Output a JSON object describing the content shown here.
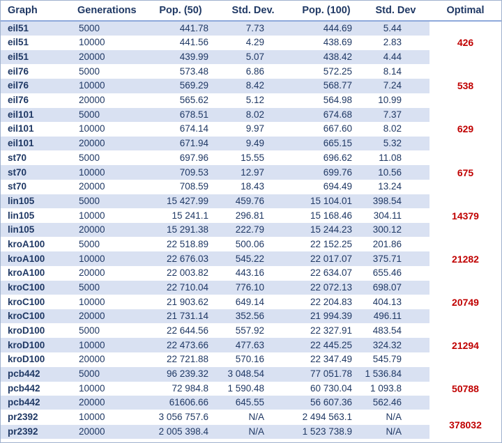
{
  "headers": [
    "Graph",
    "Generations",
    "Pop. (50)",
    "Std. Dev.",
    "Pop. (100)",
    "Std. Dev",
    "Optimal"
  ],
  "groups": [
    {
      "optimal": "426",
      "rows": [
        [
          "eil51",
          "5000",
          "441.78",
          "7.73",
          "444.69",
          "5.44"
        ],
        [
          "eil51",
          "10000",
          "441.56",
          "4.29",
          "438.69",
          "2.83"
        ],
        [
          "eil51",
          "20000",
          "439.99",
          "5.07",
          "438.42",
          "4.44"
        ]
      ]
    },
    {
      "optimal": "538",
      "rows": [
        [
          "eil76",
          "5000",
          "573.48",
          "6.86",
          "572.25",
          "8.14"
        ],
        [
          "eil76",
          "10000",
          "569.29",
          "8.42",
          "568.77",
          "7.24"
        ],
        [
          "eil76",
          "20000",
          "565.62",
          "5.12",
          "564.98",
          "10.99"
        ]
      ]
    },
    {
      "optimal": "629",
      "rows": [
        [
          "eil101",
          "5000",
          "678.51",
          "8.02",
          "674.68",
          "7.37"
        ],
        [
          "eil101",
          "10000",
          "674.14",
          "9.97",
          "667.60",
          "8.02"
        ],
        [
          "eil101",
          "20000",
          "671.94",
          "9.49",
          "665.15",
          "5.32"
        ]
      ]
    },
    {
      "optimal": "675",
      "rows": [
        [
          "st70",
          "5000",
          "697.96",
          "15.55",
          "696.62",
          "11.08"
        ],
        [
          "st70",
          "10000",
          "709.53",
          "12.97",
          "699.76",
          "10.56"
        ],
        [
          "st70",
          "20000",
          "708.59",
          "18.43",
          "694.49",
          "13.24"
        ]
      ]
    },
    {
      "optimal": "14379",
      "rows": [
        [
          "lin105",
          "5000",
          "15 427.99",
          "459.76",
          "15 104.01",
          "398.54"
        ],
        [
          "lin105",
          "10000",
          "15 241.1",
          "296.81",
          "15 168.46",
          "304.11"
        ],
        [
          "lin105",
          "20000",
          "15 291.38",
          "222.79",
          "15 244.23",
          "300.12"
        ]
      ]
    },
    {
      "optimal": "21282",
      "rows": [
        [
          "kroA100",
          "5000",
          "22 518.89",
          "500.06",
          "22 152.25",
          "201.86"
        ],
        [
          "kroA100",
          "10000",
          "22 676.03",
          "545.22",
          "22 017.07",
          "375.71"
        ],
        [
          "kroA100",
          "20000",
          "22 003.82",
          "443.16",
          "22 634.07",
          "655.46"
        ]
      ]
    },
    {
      "optimal": "20749",
      "rows": [
        [
          "kroC100",
          "5000",
          "22 710.04",
          "776.10",
          "22 072.13",
          "698.07"
        ],
        [
          "kroC100",
          "10000",
          "21 903.62",
          "649.14",
          "22 204.83",
          "404.13"
        ],
        [
          "kroC100",
          "20000",
          "21 731.14",
          "352.56",
          "21 994.39",
          "496.11"
        ]
      ]
    },
    {
      "optimal": "21294",
      "rows": [
        [
          "kroD100",
          "5000",
          "22 644.56",
          "557.92",
          "22 327.91",
          "483.54"
        ],
        [
          "kroD100",
          "10000",
          "22 473.66",
          "477.63",
          "22 445.25",
          "324.32"
        ],
        [
          "kroD100",
          "20000",
          "22 721.88",
          "570.16",
          "22 347.49",
          "545.79"
        ]
      ]
    },
    {
      "optimal": "50788",
      "rows": [
        [
          "pcb442",
          "5000",
          "96 239.32",
          "3 048.54",
          "77 051.78",
          "1 536.84"
        ],
        [
          "pcb442",
          "10000",
          "72 984.8",
          "1 590.48",
          "60 730.04",
          "1 093.8"
        ],
        [
          "pcb442",
          "20000",
          "61606.66",
          "645.55",
          "56 607.36",
          "562.46"
        ]
      ]
    },
    {
      "optimal": "378032",
      "rows": [
        [
          "pr2392",
          "10000",
          "3 056 757.6",
          "N/A",
          "2 494 563.1",
          "N/A"
        ],
        [
          "pr2392",
          "20000",
          "2 005 398.4",
          "N/A",
          "1 523 738.9",
          "N/A"
        ]
      ]
    }
  ]
}
